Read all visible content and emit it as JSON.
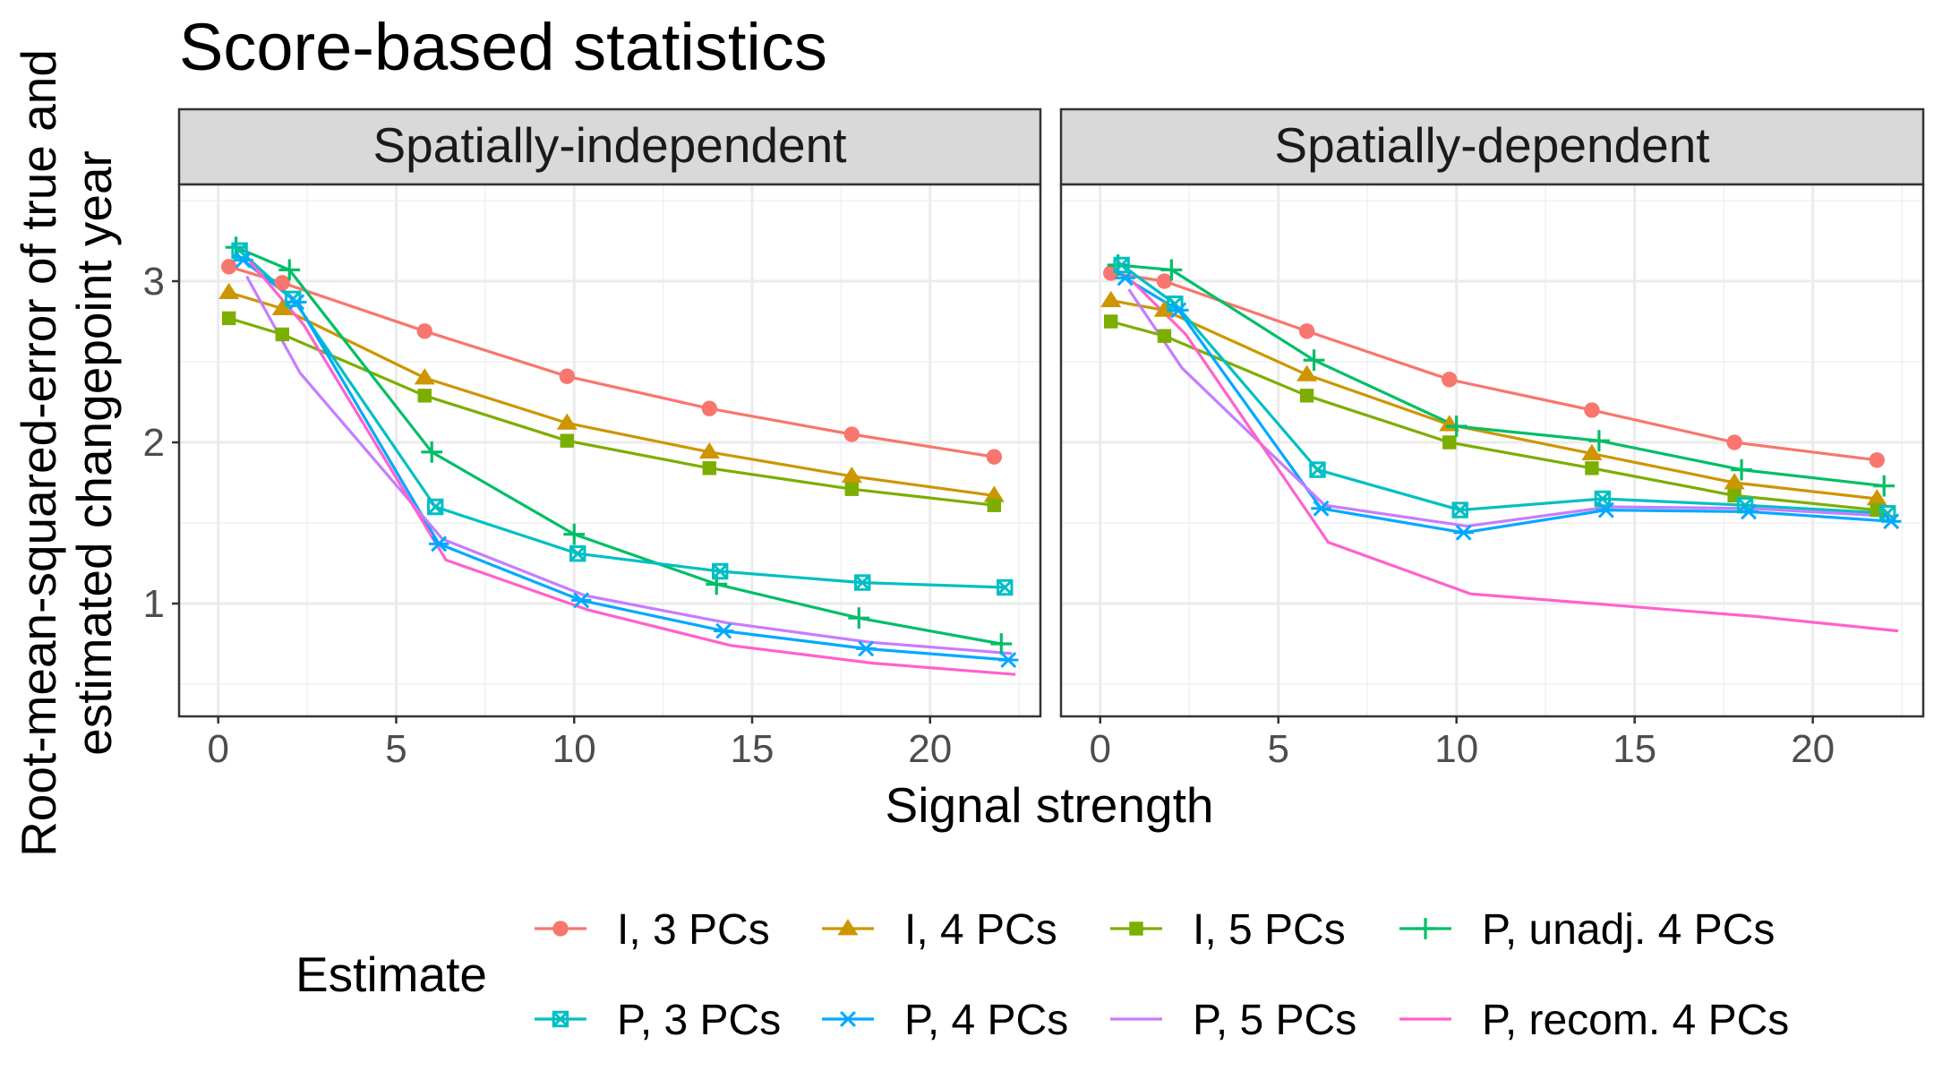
{
  "chart_data": {
    "type": "line",
    "title": "Score-based statistics",
    "xlabel": "Signal strength",
    "ylabel_lines": [
      "Root-mean-squared-error of true and",
      "estimated changepoint year"
    ],
    "xlim": [
      -1.1,
      23.1
    ],
    "ylim": [
      0.3,
      3.6
    ],
    "x_ticks": [
      0,
      5,
      10,
      15,
      20
    ],
    "x_tick_labels": [
      "0",
      "5",
      "10",
      "15",
      "20"
    ],
    "y_ticks": [
      1,
      2,
      3
    ],
    "y_tick_labels": [
      "1",
      "2",
      "3"
    ],
    "grid": true,
    "legend_title": "Estimate",
    "legend_position": "bottom",
    "series_styles": [
      {
        "name": "I, 3 PCs",
        "color": "#F8766D",
        "shape": "circle"
      },
      {
        "name": "I, 4 PCs",
        "color": "#CD9600",
        "shape": "triangle"
      },
      {
        "name": "I, 5 PCs",
        "color": "#7CAE00",
        "shape": "square"
      },
      {
        "name": "P, unadj. 4 PCs",
        "color": "#00BE67",
        "shape": "plus"
      },
      {
        "name": "P, 3 PCs",
        "color": "#00BFC4",
        "shape": "square-x"
      },
      {
        "name": "P, 4 PCs",
        "color": "#00A9FF",
        "shape": "asterisk"
      },
      {
        "name": "P, 5 PCs",
        "color": "#C77CFF",
        "shape": "none"
      },
      {
        "name": "P, recom. 4 PCs",
        "color": "#FF61CC",
        "shape": "none"
      }
    ],
    "panels": [
      {
        "strip": "Spatially-independent",
        "series": [
          {
            "name": "I, 3 PCs",
            "x": [
              0.3,
              1.8,
              5.8,
              9.8,
              13.8,
              17.8,
              21.8
            ],
            "y": [
              3.09,
              2.99,
              2.69,
              2.41,
              2.21,
              2.05,
              1.91
            ]
          },
          {
            "name": "I, 4 PCs",
            "x": [
              0.3,
              1.8,
              5.8,
              9.8,
              13.8,
              17.8,
              21.8
            ],
            "y": [
              2.93,
              2.83,
              2.4,
              2.12,
              1.94,
              1.79,
              1.67
            ]
          },
          {
            "name": "I, 5 PCs",
            "x": [
              0.3,
              1.8,
              5.8,
              9.8,
              13.8,
              17.8,
              21.8
            ],
            "y": [
              2.77,
              2.67,
              2.29,
              2.01,
              1.84,
              1.71,
              1.61
            ]
          },
          {
            "name": "P, unadj. 4 PCs",
            "x": [
              0.5,
              2.0,
              6.0,
              10.0,
              14.0,
              18.0,
              22.0
            ],
            "y": [
              3.21,
              3.07,
              1.94,
              1.43,
              1.12,
              0.91,
              0.75
            ]
          },
          {
            "name": "P, 3 PCs",
            "x": [
              0.6,
              2.1,
              6.1,
              10.1,
              14.1,
              18.1,
              22.1
            ],
            "y": [
              3.19,
              2.89,
              1.6,
              1.31,
              1.2,
              1.13,
              1.1
            ]
          },
          {
            "name": "P, 4 PCs",
            "x": [
              0.7,
              2.2,
              6.2,
              10.2,
              14.2,
              18.2,
              22.2
            ],
            "y": [
              3.13,
              2.87,
              1.37,
              1.02,
              0.83,
              0.72,
              0.65
            ]
          },
          {
            "name": "P, 5 PCs",
            "x": [
              0.8,
              2.3,
              6.3,
              10.3,
              14.3,
              18.3,
              22.3
            ],
            "y": [
              3.03,
              2.43,
              1.4,
              1.05,
              0.88,
              0.76,
              0.69
            ]
          },
          {
            "name": "P, recom. 4 PCs",
            "x": [
              0.9,
              2.4,
              6.4,
              10.4,
              14.4,
              18.4,
              22.4
            ],
            "y": [
              3.12,
              2.73,
              1.27,
              0.96,
              0.74,
              0.63,
              0.56
            ]
          }
        ]
      },
      {
        "strip": "Spatially-dependent",
        "series": [
          {
            "name": "I, 3 PCs",
            "x": [
              0.3,
              1.8,
              5.8,
              9.8,
              13.8,
              17.8,
              21.8
            ],
            "y": [
              3.05,
              3.0,
              2.69,
              2.39,
              2.2,
              2.0,
              1.89
            ]
          },
          {
            "name": "I, 4 PCs",
            "x": [
              0.3,
              1.8,
              5.8,
              9.8,
              13.8,
              17.8,
              21.8
            ],
            "y": [
              2.88,
              2.82,
              2.42,
              2.11,
              1.93,
              1.75,
              1.65
            ]
          },
          {
            "name": "I, 5 PCs",
            "x": [
              0.3,
              1.8,
              5.8,
              9.8,
              13.8,
              17.8,
              21.8
            ],
            "y": [
              2.75,
              2.66,
              2.29,
              2.0,
              1.84,
              1.67,
              1.58
            ]
          },
          {
            "name": "P, unadj. 4 PCs",
            "x": [
              0.5,
              2.0,
              6.0,
              10.0,
              14.0,
              18.0,
              22.0
            ],
            "y": [
              3.1,
              3.07,
              2.51,
              2.1,
              2.01,
              1.83,
              1.73
            ]
          },
          {
            "name": "P, 3 PCs",
            "x": [
              0.6,
              2.1,
              6.1,
              10.1,
              14.1,
              18.1,
              22.1
            ],
            "y": [
              3.1,
              2.86,
              1.83,
              1.58,
              1.65,
              1.61,
              1.56
            ]
          },
          {
            "name": "P, 4 PCs",
            "x": [
              0.7,
              2.2,
              6.2,
              10.2,
              14.2,
              18.2,
              22.2
            ],
            "y": [
              3.02,
              2.82,
              1.59,
              1.44,
              1.58,
              1.57,
              1.51
            ]
          },
          {
            "name": "P, 5 PCs",
            "x": [
              0.8,
              2.3,
              6.3,
              10.3,
              14.3,
              18.3,
              22.3
            ],
            "y": [
              2.95,
              2.46,
              1.61,
              1.48,
              1.6,
              1.59,
              1.54
            ]
          },
          {
            "name": "P, recom. 4 PCs",
            "x": [
              0.9,
              2.4,
              6.4,
              10.4,
              14.4,
              18.4,
              22.4
            ],
            "y": [
              3.0,
              2.67,
              1.38,
              1.06,
              0.99,
              0.92,
              0.83
            ]
          }
        ]
      }
    ]
  }
}
